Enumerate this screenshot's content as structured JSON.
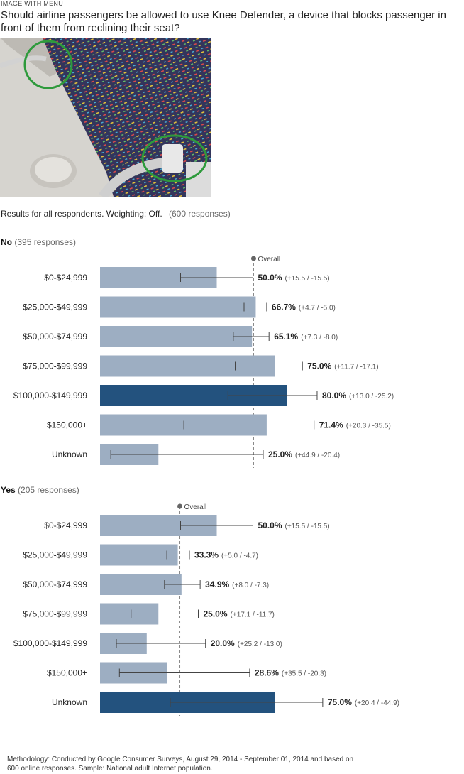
{
  "header": {
    "eyebrow": "IMAGE WITH MENU",
    "question": "Should airline passengers be allowed to use Knee Defender, a device that blocks passenger in front of them from reclining their seat?"
  },
  "summary": {
    "text": "Results for all respondents. Weighting: Off.",
    "responses": "(600 responses)"
  },
  "chart_data": [
    {
      "type": "bar",
      "orientation": "horizontal",
      "answer": "No",
      "responses_label": "(395 responses)",
      "overall_label": "Overall",
      "overall_value": 65.8,
      "xlim": [
        0,
        100
      ],
      "categories": [
        "$0-$24,999",
        "$25,000-$49,999",
        "$50,000-$74,999",
        "$75,000-$99,999",
        "$100,000-$149,999",
        "$150,000+",
        "Unknown"
      ],
      "values": [
        50.0,
        66.7,
        65.1,
        75.0,
        80.0,
        71.4,
        25.0
      ],
      "value_labels": [
        "50.0%",
        "66.7%",
        "65.1%",
        "75.0%",
        "80.0%",
        "71.4%",
        "25.0%"
      ],
      "error_plus": [
        15.5,
        4.7,
        7.3,
        11.7,
        13.0,
        20.3,
        44.9
      ],
      "error_minus": [
        15.5,
        5.0,
        8.0,
        17.1,
        25.2,
        35.5,
        20.4
      ],
      "error_labels": [
        "(+15.5 / -15.5)",
        "(+4.7 / -5.0)",
        "(+7.3 / -8.0)",
        "(+11.7 / -17.1)",
        "(+13.0 / -25.2)",
        "(+20.3 / -35.5)",
        "(+44.9 / -20.4)"
      ],
      "highlight_index": 4
    },
    {
      "type": "bar",
      "orientation": "horizontal",
      "answer": "Yes",
      "responses_label": "(205 responses)",
      "overall_label": "Overall",
      "overall_value": 34.2,
      "xlim": [
        0,
        100
      ],
      "categories": [
        "$0-$24,999",
        "$25,000-$49,999",
        "$50,000-$74,999",
        "$75,000-$99,999",
        "$100,000-$149,999",
        "$150,000+",
        "Unknown"
      ],
      "values": [
        50.0,
        33.3,
        34.9,
        25.0,
        20.0,
        28.6,
        75.0
      ],
      "value_labels": [
        "50.0%",
        "33.3%",
        "34.9%",
        "25.0%",
        "20.0%",
        "28.6%",
        "75.0%"
      ],
      "error_plus": [
        15.5,
        5.0,
        8.0,
        17.1,
        25.2,
        35.5,
        20.4
      ],
      "error_minus": [
        15.5,
        4.7,
        7.3,
        11.7,
        13.0,
        20.3,
        44.9
      ],
      "error_labels": [
        "(+15.5 / -15.5)",
        "(+5.0 / -4.7)",
        "(+8.0 / -7.3)",
        "(+17.1 / -11.7)",
        "(+25.2 / -13.0)",
        "(+35.5 / -20.3)",
        "(+20.4 / -44.9)"
      ],
      "highlight_index": 6
    }
  ],
  "colors": {
    "bar": "#9daec2",
    "bar_highlight": "#23527e",
    "overall_line": "#888888",
    "error_bar": "#444444"
  },
  "footer": {
    "methodology": "Methodology: Conducted by Google Consumer Surveys, August 29, 2014 - September 01, 2014 and based on 600 online responses. Sample: National adult Internet population."
  }
}
